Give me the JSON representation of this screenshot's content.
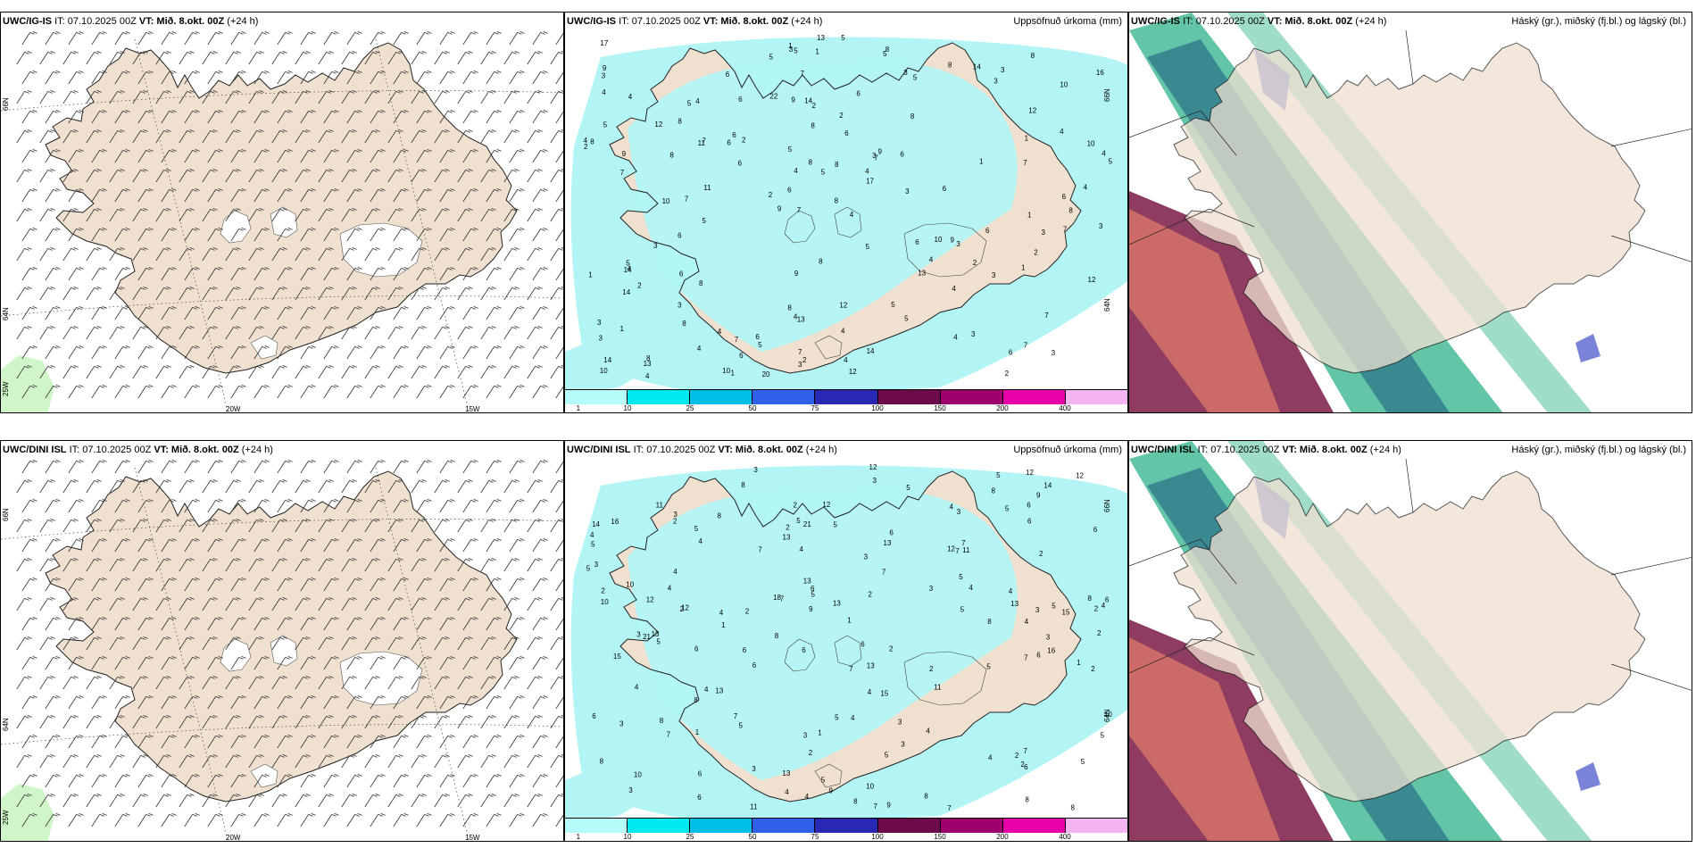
{
  "top": {
    "wind": {
      "model": "UWC/IG-IS",
      "it": "IT: 07.10.2025 00Z",
      "vt": "VT: Mið. 8.okt. 00Z",
      "lead": "(+24 h)",
      "lat_labels": [
        "66N",
        "64N",
        "25W"
      ],
      "lon_labels": [
        "20W",
        "15W"
      ]
    },
    "precip": {
      "model": "UWC/IG-IS",
      "it": "IT: 07.10.2025 00Z",
      "vt": "VT: Mið. 8.okt. 00Z",
      "lead": "(+24 h)",
      "title": "Uppsöfnuð úrkoma (mm)",
      "lat_labels": [
        "66N",
        "64N"
      ],
      "values": [
        "3",
        "7",
        "10",
        "9",
        "8",
        "8",
        "9",
        "6",
        "2",
        "2",
        "3",
        "8",
        "14",
        "7",
        "3",
        "4",
        "5",
        "5",
        "6",
        "4",
        "6",
        "8",
        "4",
        "4",
        "8",
        "8",
        "6",
        "7",
        "9",
        "12",
        "6",
        "8",
        "13",
        "4",
        "10",
        "4",
        "14",
        "13",
        "17",
        "14",
        "12",
        "16",
        "4",
        "5",
        "3",
        "4",
        "10",
        "12",
        "3",
        "13",
        "11",
        "8",
        "8",
        "14",
        "13",
        "8",
        "5",
        "8",
        "12",
        "9",
        "7",
        "10",
        "11",
        "3",
        "17",
        "12",
        "3",
        "5",
        "4",
        "8",
        "1",
        "3",
        "2",
        "7",
        "7",
        "8",
        "3",
        "4",
        "5",
        "1",
        "8",
        "6",
        "4",
        "5",
        "1",
        "2",
        "2",
        "3",
        "5",
        "10",
        "10",
        "6",
        "4",
        "3",
        "6",
        "4",
        "3",
        "3",
        "6",
        "1",
        "3",
        "2",
        "2",
        "1",
        "1",
        "7",
        "8",
        "22",
        "20",
        "14",
        "2",
        "2",
        "6",
        "6",
        "6",
        "7",
        "5",
        "1",
        "4",
        "4",
        "14",
        "7",
        "6",
        "3",
        "2",
        "5",
        "5",
        "7",
        "6",
        "4",
        "9",
        "3",
        "8",
        "9",
        "9",
        "6",
        "4",
        "4",
        "3",
        "1",
        "5",
        "4",
        "6",
        "6",
        "5",
        "7",
        "8",
        "7",
        "6",
        "5",
        "1",
        "4",
        "3",
        "5",
        "5"
      ]
    },
    "cloud": {
      "model": "UWC/IG-IS",
      "it": "IT: 07.10.2025 00Z",
      "vt": "VT: Mið. 8.okt. 00Z",
      "lead": "(+24 h)",
      "title": "Háský (gr.), miðský (fj.bl.) og lágský (bl.)"
    }
  },
  "bottom": {
    "wind": {
      "model": "UWC/DINI ISL",
      "it": "IT: 07.10.2025 00Z",
      "vt": "VT: Mið. 8.okt. 00Z",
      "lead": "(+24 h)",
      "lat_labels": [
        "66N",
        "64N",
        "25W"
      ],
      "lon_labels": [
        "20W",
        "15W"
      ]
    },
    "precip": {
      "model": "UWC/DINI ISL",
      "it": "IT: 07.10.2025 00Z",
      "vt": "VT: Mið. 8.okt. 00Z",
      "lead": "(+24 h)",
      "title": "Uppsöfnuð úrkoma (mm)",
      "lat_labels": [
        "66N",
        "64N"
      ],
      "values": [
        "3",
        "3",
        "2",
        "6",
        "13",
        "13",
        "16",
        "12",
        "15",
        "13",
        "1",
        "3",
        "8",
        "6",
        "7",
        "9",
        "2",
        "5",
        "4",
        "8",
        "12",
        "3",
        "4",
        "5",
        "6",
        "10",
        "9",
        "13",
        "7",
        "3",
        "2",
        "6",
        "8",
        "7",
        "4",
        "10",
        "4",
        "13",
        "12",
        "12",
        "10",
        "11",
        "8",
        "11",
        "9",
        "11",
        "6",
        "7",
        "5",
        "6",
        "5",
        "4",
        "2",
        "9",
        "3",
        "1",
        "13",
        "13",
        "14",
        "4",
        "5",
        "6",
        "3",
        "5",
        "7",
        "2",
        "3",
        "5",
        "7",
        "6",
        "4",
        "2",
        "8",
        "5",
        "7",
        "4",
        "3",
        "2",
        "15",
        "13",
        "12",
        "10",
        "8",
        "14",
        "13",
        "21",
        "8",
        "5",
        "6",
        "3",
        "10",
        "16",
        "4",
        "8",
        "5",
        "3",
        "4",
        "2",
        "2",
        "1",
        "12",
        "11",
        "15",
        "8",
        "12",
        "4",
        "5",
        "5",
        "8",
        "5",
        "2",
        "3",
        "6",
        "7",
        "7",
        "8",
        "7",
        "3",
        "4",
        "5",
        "3",
        "2",
        "21",
        "18",
        "8",
        "4",
        "2",
        "6",
        "5",
        "4",
        "3",
        "5",
        "5",
        "4",
        "2",
        "1",
        "6",
        "2",
        "1",
        "8",
        "7",
        "7",
        "6",
        "6",
        "4",
        "2",
        "2",
        "5",
        "4",
        "3",
        "6",
        "5",
        "4",
        "4",
        "6",
        "5"
      ]
    },
    "cloud": {
      "model": "UWC/DINI ISL",
      "it": "IT: 07.10.2025 00Z",
      "vt": "VT: Mið. 8.okt. 00Z",
      "lead": "(+24 h)",
      "title": "Háský (gr.), miðský (fj.bl.) og lágský (bl.)"
    }
  },
  "colorbar": {
    "ticks": [
      "1",
      "10",
      "25",
      "50",
      "75",
      "100",
      "150",
      "200",
      "400"
    ],
    "colors": [
      "#b6fafa",
      "#00e9ef",
      "#00bfe6",
      "#3060e8",
      "#2a28b2",
      "#6c0a4a",
      "#a0006e",
      "#e800a8",
      "#f4b4f0"
    ]
  },
  "palette": {
    "land": "#efe0d0",
    "sea_precip": "#b3f5f5",
    "sea": "#ffffff",
    "cloud_high": "#2db28a",
    "cloud_mid": "#2a6f87",
    "cloud_low": "#5865d0",
    "rain_heavy": "#7a1a45",
    "rain_mid": "#e07a6a"
  }
}
